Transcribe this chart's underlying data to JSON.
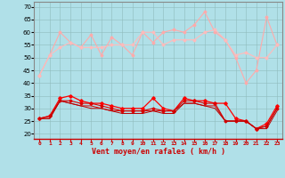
{
  "x": [
    0,
    1,
    2,
    3,
    4,
    5,
    6,
    7,
    8,
    9,
    10,
    11,
    12,
    13,
    14,
    15,
    16,
    17,
    18,
    19,
    20,
    21,
    22,
    23
  ],
  "rafales_line1": [
    43,
    51,
    60,
    56,
    54,
    59,
    51,
    58,
    55,
    51,
    60,
    56,
    60,
    61,
    60,
    63,
    68,
    60,
    57,
    50,
    40,
    45,
    66,
    55
  ],
  "rafales_line2": [
    43,
    51,
    54,
    56,
    54,
    54,
    54,
    55,
    55,
    55,
    60,
    60,
    55,
    57,
    57,
    57,
    60,
    61,
    57,
    51,
    52,
    50,
    50,
    55
  ],
  "vent_line1": [
    26,
    27,
    34,
    35,
    33,
    32,
    32,
    31,
    30,
    30,
    30,
    34,
    30,
    29,
    34,
    33,
    33,
    32,
    32,
    26,
    25,
    22,
    24,
    31
  ],
  "vent_line2": [
    26,
    27,
    33,
    33,
    32,
    32,
    31,
    30,
    29,
    29,
    29,
    30,
    29,
    29,
    33,
    33,
    32,
    32,
    25,
    25,
    25,
    22,
    23,
    30
  ],
  "vent_line3": [
    26,
    26,
    33,
    32,
    31,
    31,
    30,
    29,
    29,
    29,
    29,
    29,
    29,
    29,
    32,
    32,
    31,
    31,
    25,
    25,
    25,
    22,
    23,
    30
  ],
  "vent_line4": [
    26,
    26,
    33,
    32,
    31,
    30,
    30,
    29,
    28,
    28,
    28,
    29,
    28,
    28,
    32,
    32,
    31,
    30,
    25,
    25,
    25,
    22,
    22,
    29
  ],
  "bg_color": "#b0e0e8",
  "grid_color": "#8fbcbc",
  "xlabel": "Vent moyen/en rafales ( km/h )",
  "xlabel_color": "#cc0000",
  "ylabel_ticks": [
    20,
    25,
    30,
    35,
    40,
    45,
    50,
    55,
    60,
    65,
    70
  ],
  "ylim": [
    18,
    72
  ],
  "xlim": [
    -0.5,
    23.5
  ]
}
